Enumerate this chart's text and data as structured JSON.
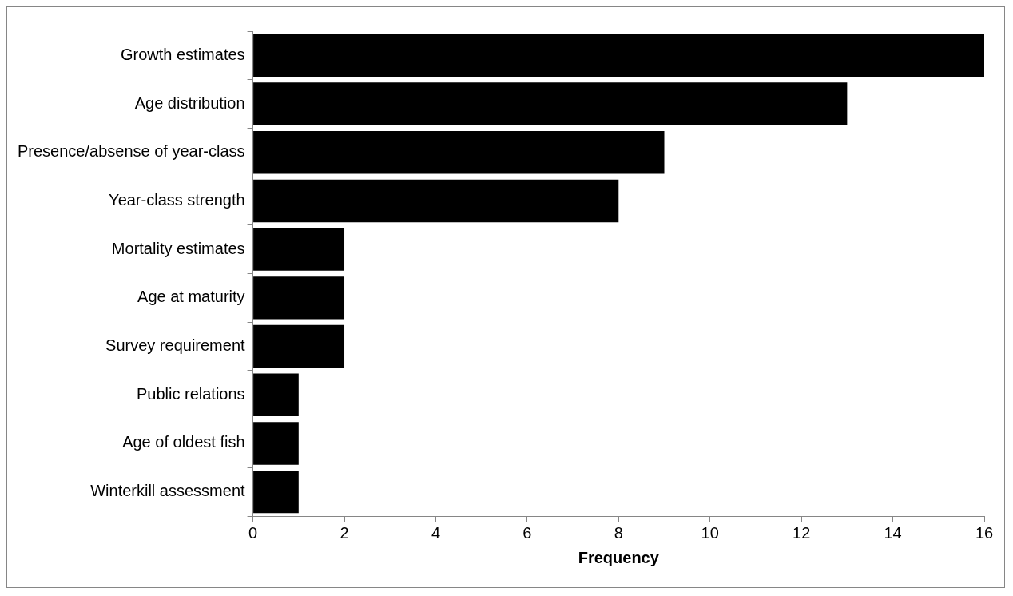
{
  "chart_data": {
    "type": "bar",
    "orientation": "horizontal",
    "xlabel": "Frequency",
    "categories": [
      "Growth estimates",
      "Age distribution",
      "Presence/absense of year-class",
      "Year-class strength",
      "Mortality estimates",
      "Age at maturity",
      "Survey requirement",
      "Public relations",
      "Age of oldest fish",
      "Winterkill assessment"
    ],
    "values": [
      16,
      13,
      9,
      8,
      2,
      2,
      2,
      1,
      1,
      1
    ],
    "color": "#000000",
    "xlim": [
      0,
      16
    ],
    "xticks": [
      0,
      2,
      4,
      6,
      8,
      10,
      12,
      14,
      16
    ],
    "grid": false,
    "legend": false
  }
}
